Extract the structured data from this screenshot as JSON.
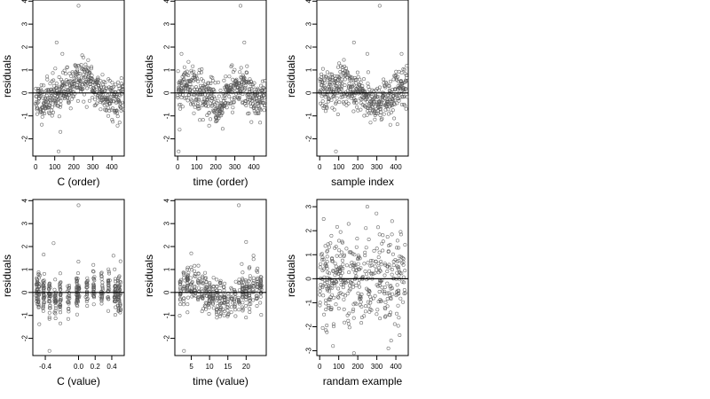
{
  "chart_data": [
    {
      "type": "scatter",
      "xlabel": "C (order)",
      "ylabel": "residuals",
      "xlim": [
        -15,
        465
      ],
      "ylim": [
        -2.75,
        4.05
      ],
      "xticks": [
        0,
        100,
        200,
        300,
        400
      ],
      "xtick_labels": [
        "0",
        "100",
        "200",
        "300",
        "400"
      ],
      "yticks": [
        -2,
        -1,
        0,
        1,
        2,
        3,
        4
      ],
      "ytick_labels": [
        "-2",
        "-1",
        "0",
        "1",
        "2",
        "3",
        "4"
      ],
      "hline": 0,
      "n_points": 460,
      "pattern": "order_wave",
      "seed": 11,
      "outliers": [
        [
          225,
          3.8
        ],
        [
          120,
          -2.55
        ],
        [
          110,
          2.2
        ],
        [
          140,
          1.7
        ],
        [
          130,
          -1.7
        ]
      ]
    },
    {
      "type": "scatter",
      "xlabel": "time (order)",
      "ylabel": "residuals",
      "xlim": [
        -15,
        465
      ],
      "ylim": [
        -2.75,
        4.05
      ],
      "xticks": [
        0,
        100,
        200,
        300,
        400
      ],
      "xtick_labels": [
        "0",
        "100",
        "200",
        "300",
        "400"
      ],
      "yticks": [
        -2,
        -1,
        0,
        1,
        2,
        3,
        4
      ],
      "ytick_labels": [
        "-2",
        "-1",
        "0",
        "1",
        "2",
        "3",
        "4"
      ],
      "hline": 0,
      "n_points": 460,
      "pattern": "time_wave",
      "seed": 22,
      "outliers": [
        [
          330,
          3.8
        ],
        [
          5,
          -2.55
        ],
        [
          350,
          2.2
        ],
        [
          20,
          1.7
        ],
        [
          10,
          -1.6
        ]
      ]
    },
    {
      "type": "scatter",
      "xlabel": "sample index",
      "ylabel": "residuals",
      "xlim": [
        -15,
        465
      ],
      "ylim": [
        -2.75,
        4.05
      ],
      "xticks": [
        0,
        100,
        200,
        300,
        400
      ],
      "xtick_labels": [
        "0",
        "100",
        "200",
        "300",
        "400"
      ],
      "yticks": [
        -2,
        -1,
        0,
        1,
        2,
        3,
        4
      ],
      "ytick_labels": [
        "-2",
        "-1",
        "0",
        "1",
        "2",
        "3",
        "4"
      ],
      "hline": 0,
      "n_points": 460,
      "pattern": "index_wave",
      "seed": 33,
      "outliers": [
        [
          315,
          3.8
        ],
        [
          85,
          -2.55
        ],
        [
          180,
          2.2
        ],
        [
          250,
          1.7
        ],
        [
          430,
          1.7
        ]
      ]
    },
    {
      "type": "scatter",
      "xlabel": "C (value)",
      "ylabel": "residuals",
      "xlim": [
        -0.55,
        0.55
      ],
      "ylim": [
        -2.75,
        4.05
      ],
      "xticks": [
        -0.4,
        0.0,
        0.2,
        0.4
      ],
      "xtick_labels": [
        "-0.4",
        "0.0",
        "0.2",
        "0.4"
      ],
      "yticks": [
        -2,
        -1,
        0,
        1,
        2,
        3,
        4
      ],
      "ytick_labels": [
        "-2",
        "-1",
        "0",
        "1",
        "2",
        "3",
        "4"
      ],
      "hline": 0,
      "n_points": 420,
      "pattern": "value_columns",
      "seed": 44,
      "columns": [
        -0.5,
        -0.48,
        -0.42,
        -0.35,
        -0.28,
        -0.22,
        -0.12,
        -0.02,
        0.0,
        0.1,
        0.18,
        0.28,
        0.36,
        0.44,
        0.48,
        0.5
      ],
      "outliers": [
        [
          0.0,
          3.8
        ],
        [
          -0.35,
          -2.55
        ],
        [
          -0.3,
          2.15
        ],
        [
          -0.42,
          1.65
        ],
        [
          0.42,
          1.6
        ]
      ]
    },
    {
      "type": "scatter",
      "xlabel": "time (value)",
      "ylabel": "residuals",
      "xlim": [
        0.5,
        25.5
      ],
      "ylim": [
        -2.75,
        4.05
      ],
      "xticks": [
        5,
        10,
        15,
        20
      ],
      "xtick_labels": [
        "5",
        "10",
        "15",
        "20"
      ],
      "yticks": [
        -2,
        -1,
        0,
        1,
        2,
        3,
        4
      ],
      "ytick_labels": [
        "-2",
        "-1",
        "0",
        "1",
        "2",
        "3",
        "4"
      ],
      "hline": 0,
      "n_points": 420,
      "pattern": "time_columns",
      "seed": 55,
      "columns": [
        2,
        3,
        4,
        5,
        6,
        7,
        8,
        9,
        10,
        11,
        12,
        13,
        14,
        15,
        16,
        17,
        18,
        19,
        20,
        21,
        22,
        23,
        24
      ],
      "outliers": [
        [
          18,
          3.8
        ],
        [
          3,
          -2.55
        ],
        [
          20,
          2.2
        ],
        [
          5,
          1.7
        ],
        [
          22,
          1.6
        ]
      ]
    },
    {
      "type": "scatter",
      "xlabel": "randam example",
      "ylabel": "residuals",
      "xlim": [
        -15,
        465
      ],
      "ylim": [
        -3.2,
        3.3
      ],
      "xticks": [
        0,
        100,
        200,
        300,
        400
      ],
      "xtick_labels": [
        "0",
        "100",
        "200",
        "300",
        "400"
      ],
      "yticks": [
        -3,
        -2,
        -1,
        0,
        1,
        2,
        3
      ],
      "ytick_labels": [
        "-3",
        "-2",
        "-1",
        "0",
        "1",
        "2",
        "3"
      ],
      "hline": 0,
      "n_points": 400,
      "pattern": "random",
      "seed": 66,
      "outliers": [
        [
          250,
          3.0
        ],
        [
          180,
          -3.1
        ],
        [
          380,
          2.4
        ],
        [
          70,
          -2.8
        ],
        [
          420,
          -2.35
        ]
      ]
    }
  ],
  "style": {
    "point_color": "#555555",
    "axis_color": "#000000",
    "line_color": "#000000"
  }
}
